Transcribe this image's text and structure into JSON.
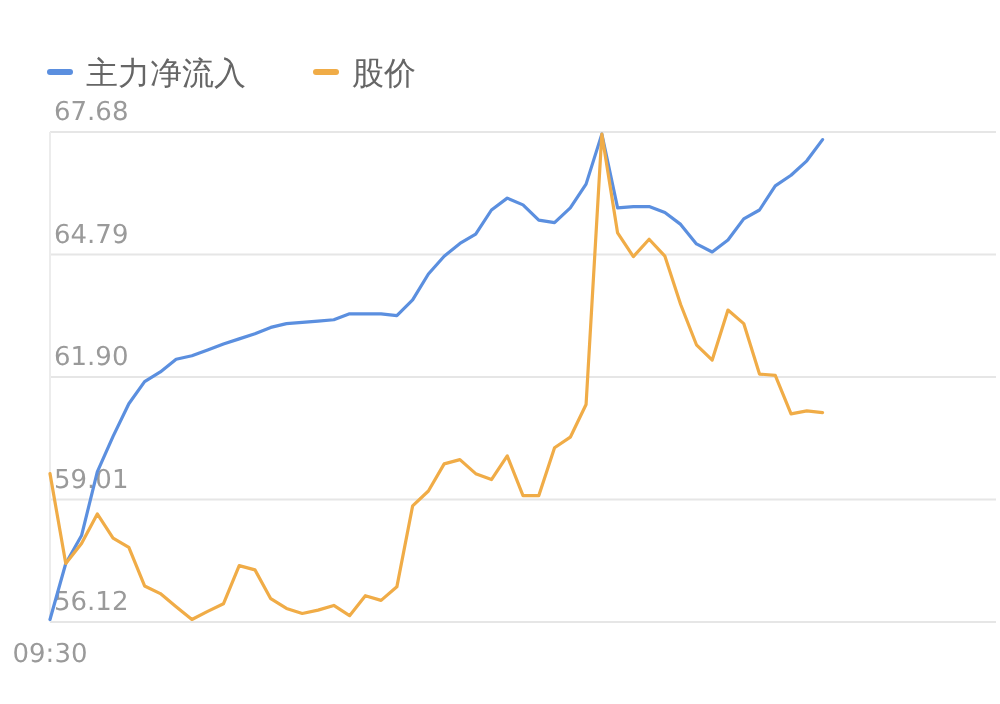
{
  "chart_data": {
    "type": "line",
    "legend": "top left",
    "grid": "y",
    "ylim": [
      56.12,
      67.68
    ],
    "yticks": [
      {
        "value": 56.12,
        "label": "56.12"
      },
      {
        "value": 59.01,
        "label": "59.01"
      },
      {
        "value": 61.9,
        "label": "61.90"
      },
      {
        "value": 64.79,
        "label": "64.79"
      },
      {
        "value": 67.68,
        "label": "67.68"
      }
    ],
    "categories": [
      "09:30",
      null,
      null,
      null,
      null,
      null,
      null,
      null,
      null,
      null,
      null,
      null,
      null,
      null,
      null,
      null,
      null,
      null,
      null,
      null,
      null,
      null,
      null,
      null,
      null,
      null,
      null,
      null,
      null,
      null,
      null,
      null,
      null,
      null,
      null,
      null,
      null,
      null,
      null,
      null,
      null,
      null,
      null,
      null,
      null,
      null,
      null,
      null,
      null,
      null,
      null,
      null,
      null,
      null,
      null,
      null,
      null,
      null,
      null,
      null,
      null
    ],
    "series": [
      {
        "name": "主力净流入",
        "color": "#5b8fdf",
        "values": [
          56.18,
          57.5,
          58.16,
          59.66,
          60.5,
          61.27,
          61.79,
          62.02,
          62.32,
          62.4,
          62.54,
          62.68,
          62.8,
          62.92,
          63.07,
          63.16,
          63.19,
          63.22,
          63.25,
          63.39,
          63.39,
          63.39,
          63.35,
          63.72,
          64.33,
          64.75,
          65.05,
          65.27,
          65.84,
          66.12,
          65.96,
          65.6,
          65.54,
          65.89,
          66.45,
          67.63,
          65.89,
          65.92,
          65.92,
          65.78,
          65.5,
          65.04,
          64.85,
          65.13,
          65.63,
          65.84,
          66.41,
          66.66,
          67.0,
          67.5,
          null,
          null,
          null,
          null,
          null,
          null,
          null,
          null,
          null,
          null,
          null
        ]
      },
      {
        "name": "股价",
        "color": "#f0ac47",
        "values": [
          59.62,
          57.5,
          57.97,
          58.67,
          58.1,
          57.88,
          56.97,
          56.79,
          56.48,
          56.18,
          56.37,
          56.55,
          57.45,
          57.35,
          56.67,
          56.44,
          56.32,
          56.4,
          56.51,
          56.27,
          56.74,
          56.63,
          56.95,
          58.86,
          59.21,
          59.85,
          59.95,
          59.62,
          59.48,
          60.04,
          59.1,
          59.1,
          60.23,
          60.48,
          61.25,
          67.63,
          65.3,
          64.74,
          65.15,
          64.75,
          63.61,
          62.66,
          62.3,
          63.48,
          63.16,
          61.97,
          61.94,
          61.03,
          61.1,
          61.06,
          null,
          null,
          null,
          null,
          null,
          null,
          null,
          null,
          null,
          null,
          null
        ]
      }
    ]
  }
}
